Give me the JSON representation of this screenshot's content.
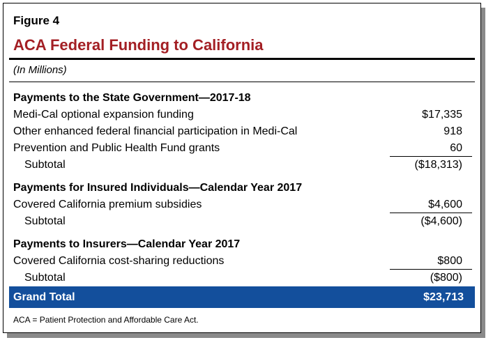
{
  "figure": {
    "label": "Figure 4",
    "title": "ACA Federal Funding to California",
    "units": "(In Millions)"
  },
  "sections": [
    {
      "heading": "Payments to the State Government—2017-18",
      "rows": [
        {
          "label": "Medi-Cal optional expansion funding",
          "value": "$17,335"
        },
        {
          "label": "Other enhanced federal financial participation in Medi-Cal",
          "value": "918"
        },
        {
          "label": "Prevention and Public Health Fund grants",
          "value": "60"
        }
      ],
      "subtotal": {
        "label": "Subtotal",
        "value": "($18,313)"
      }
    },
    {
      "heading": "Payments for Insured Individuals—Calendar Year 2017",
      "rows": [
        {
          "label": "Covered California premium subsidies",
          "value": "$4,600"
        }
      ],
      "subtotal": {
        "label": "Subtotal",
        "value": "($4,600)"
      }
    },
    {
      "heading": "Payments to Insurers—Calendar Year 2017",
      "rows": [
        {
          "label": "Covered California cost-sharing reductions",
          "value": "$800"
        }
      ],
      "subtotal": {
        "label": "Subtotal",
        "value": "($800)"
      }
    }
  ],
  "grand_total": {
    "label": "Grand Total",
    "value": "$23,713"
  },
  "footnote": "ACA = Patient Protection and Affordable Care Act.",
  "colors": {
    "title": "#a31f24",
    "grand_total_bg": "#134f9c"
  }
}
